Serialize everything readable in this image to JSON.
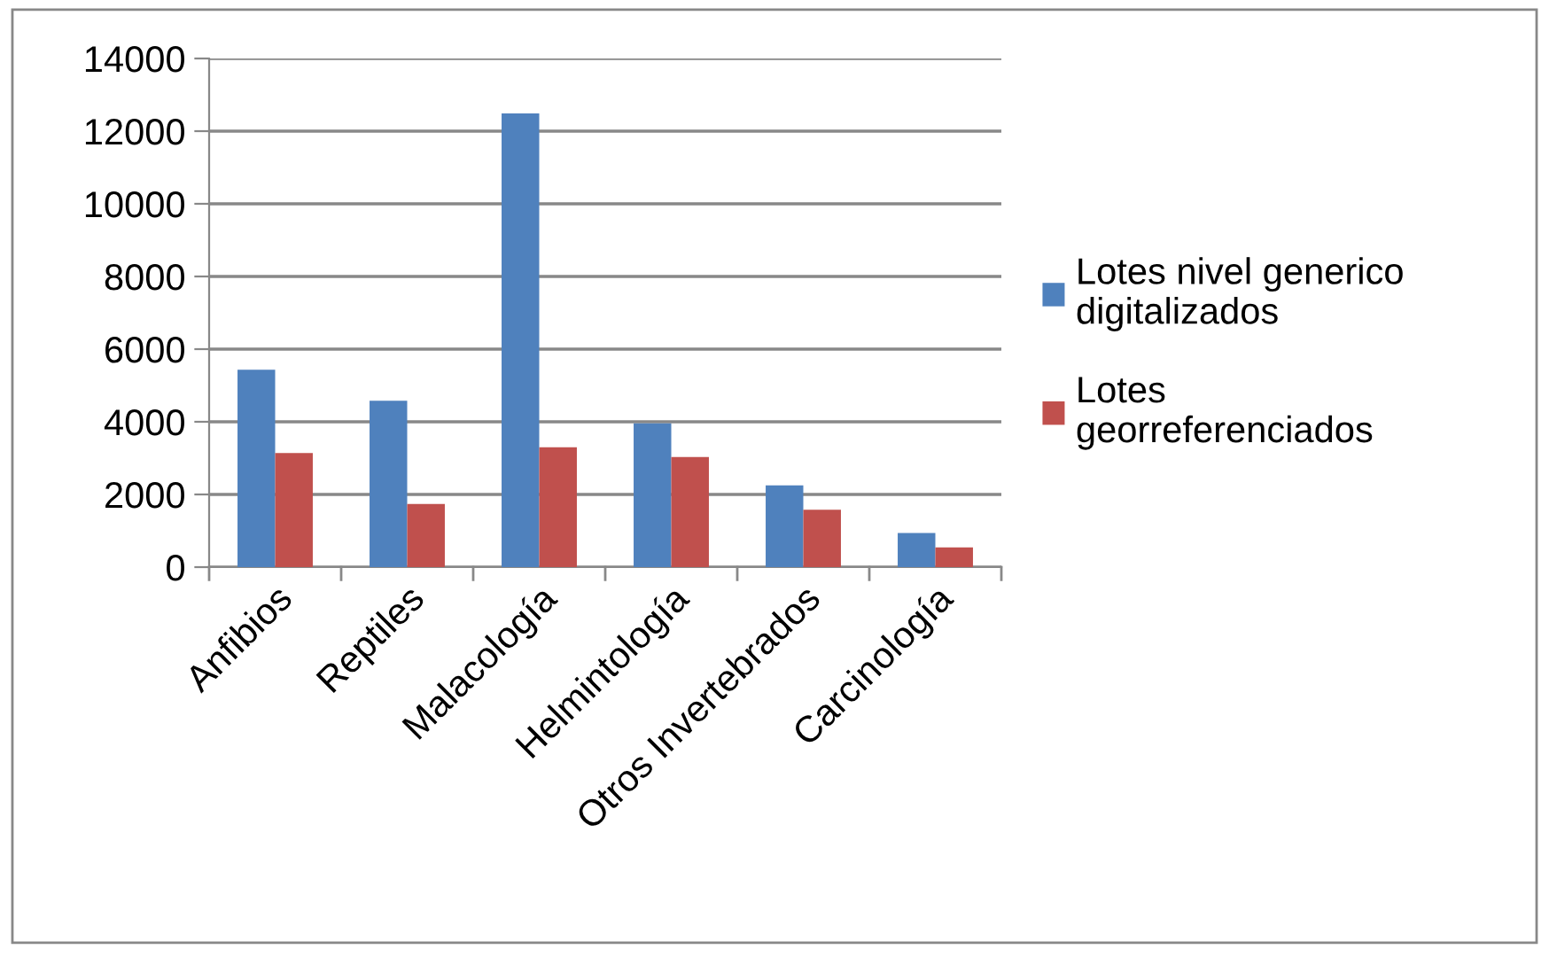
{
  "chart_data": {
    "type": "bar",
    "categories": [
      "Anfibios",
      "Reptiles",
      "Malacología",
      "Helmintología",
      "Otros Invertebrados",
      "Carcinología"
    ],
    "series": [
      {
        "name": "Lotes nivel generico digitalizados",
        "color": "#4f81bd",
        "values": [
          5430,
          4580,
          12490,
          3960,
          2250,
          940
        ]
      },
      {
        "name": "Lotes georreferenciados",
        "color": "#c0504d",
        "values": [
          3140,
          1740,
          3300,
          3030,
          1580,
          540
        ]
      }
    ],
    "ylim": [
      0,
      14000
    ],
    "yticks": [
      0,
      2000,
      4000,
      6000,
      8000,
      10000,
      12000,
      14000
    ],
    "grid": "y",
    "legend": "right"
  }
}
